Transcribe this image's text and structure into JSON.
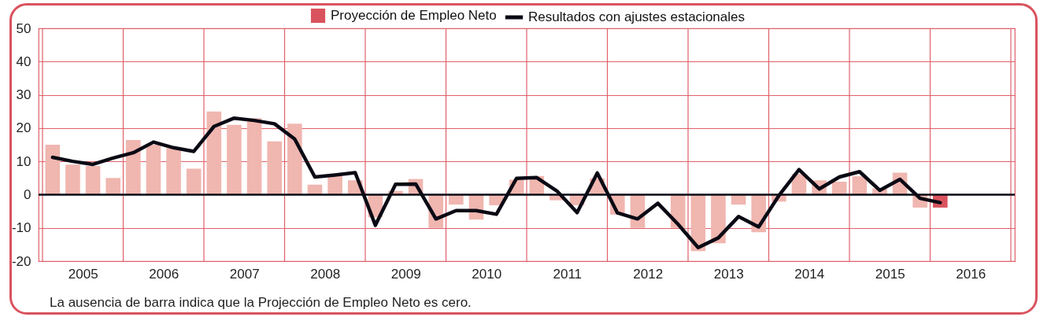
{
  "chart_data": {
    "type": "bar",
    "x": [
      2005.125,
      2005.375,
      2005.625,
      2005.875,
      2006.125,
      2006.375,
      2006.625,
      2006.875,
      2007.125,
      2007.375,
      2007.625,
      2007.875,
      2008.125,
      2008.375,
      2008.625,
      2008.875,
      2009.125,
      2009.375,
      2009.625,
      2009.875,
      2010.125,
      2010.375,
      2010.625,
      2010.875,
      2011.125,
      2011.375,
      2011.625,
      2011.875,
      2012.125,
      2012.375,
      2012.625,
      2012.875,
      2013.125,
      2013.375,
      2013.625,
      2013.875,
      2014.125,
      2014.375,
      2014.625,
      2014.875,
      2015.125,
      2015.375,
      2015.625,
      2015.875,
      2016.125
    ],
    "series": [
      {
        "type": "bar",
        "color": "#f0b6b0",
        "values": [
          15,
          9,
          8.6,
          5,
          16.4,
          15,
          14,
          7.8,
          25,
          21,
          23,
          16,
          21.3,
          3,
          5.7,
          4.3,
          -6.8,
          1.1,
          4.7,
          -10,
          -3,
          -7.5,
          -3.2,
          4.5,
          5.6,
          -1.7,
          -3.2,
          4.9,
          -6,
          -10,
          0,
          -10,
          -17,
          -14.6,
          -3,
          -11.3,
          -2.1,
          6.2,
          4.3,
          3.9,
          5.5,
          1.9,
          6.6,
          -3.9,
          null
        ]
      },
      {
        "name": "Proyección de Empleo Neto",
        "color": "#d9535e",
        "values": [
          null,
          null,
          null,
          null,
          null,
          null,
          null,
          null,
          null,
          null,
          null,
          null,
          null,
          null,
          null,
          null,
          null,
          null,
          null,
          null,
          null,
          null,
          null,
          null,
          null,
          null,
          null,
          null,
          null,
          null,
          null,
          null,
          null,
          null,
          null,
          null,
          null,
          null,
          null,
          null,
          null,
          null,
          null,
          null,
          -3.9
        ]
      },
      {
        "name": "Resultados con ajustes estacionales",
        "type": "line",
        "color": "#0a0a14",
        "values": [
          11.2,
          10,
          9.1,
          11,
          12.6,
          15.8,
          14.1,
          13,
          20.5,
          23,
          22.3,
          21.3,
          16.7,
          5.3,
          5.9,
          6.6,
          -9.2,
          3.1,
          3.2,
          -7.3,
          -4.8,
          -4.8,
          -5.9,
          4.9,
          5.1,
          1.1,
          -5.4,
          6.5,
          -5.5,
          -7.3,
          -2.6,
          -8.9,
          -15.9,
          -13,
          -6.6,
          -9.7,
          -0.3,
          7.5,
          1.7,
          5.3,
          6.9,
          1.3,
          4.6,
          -1.1,
          -2.4
        ]
      }
    ],
    "xlim": [
      2005,
      2017
    ],
    "xticks": [
      {
        "value": 2005,
        "label": null
      },
      {
        "value": 2005.5,
        "label": "2005"
      },
      {
        "value": 2006,
        "label": null
      },
      {
        "value": 2006.5,
        "label": "2006"
      },
      {
        "value": 2007,
        "label": null
      },
      {
        "value": 2007.5,
        "label": "2007"
      },
      {
        "value": 2008,
        "label": null
      },
      {
        "value": 2008.5,
        "label": "2008"
      },
      {
        "value": 2009,
        "label": null
      },
      {
        "value": 2009.5,
        "label": "2009"
      },
      {
        "value": 2010,
        "label": null
      },
      {
        "value": 2010.5,
        "label": "2010"
      },
      {
        "value": 2011,
        "label": null
      },
      {
        "value": 2011.5,
        "label": "2011"
      },
      {
        "value": 2012,
        "label": null
      },
      {
        "value": 2012.5,
        "label": "2012"
      },
      {
        "value": 2013,
        "label": null
      },
      {
        "value": 2013.5,
        "label": "2013"
      },
      {
        "value": 2014,
        "label": null
      },
      {
        "value": 2014.5,
        "label": "2014"
      },
      {
        "value": 2015,
        "label": null
      },
      {
        "value": 2015.5,
        "label": "2015"
      },
      {
        "value": 2016,
        "label": null
      },
      {
        "value": 2016.5,
        "label": "2016"
      },
      {
        "value": 2017,
        "label": null
      }
    ],
    "ylim": [
      -20,
      50
    ],
    "yticks": [
      -20,
      -10,
      0,
      10,
      20,
      30,
      40,
      50
    ],
    "grid": true,
    "legend": "top",
    "line_style": "solid",
    "marker": "none",
    "ref_lines": [
      {
        "axis": "y",
        "value": 0,
        "color": "#0a0a14"
      }
    ],
    "annotations": [
      "La ausencia de barra indica que la Projección de Empleo Neto es cero."
    ]
  }
}
